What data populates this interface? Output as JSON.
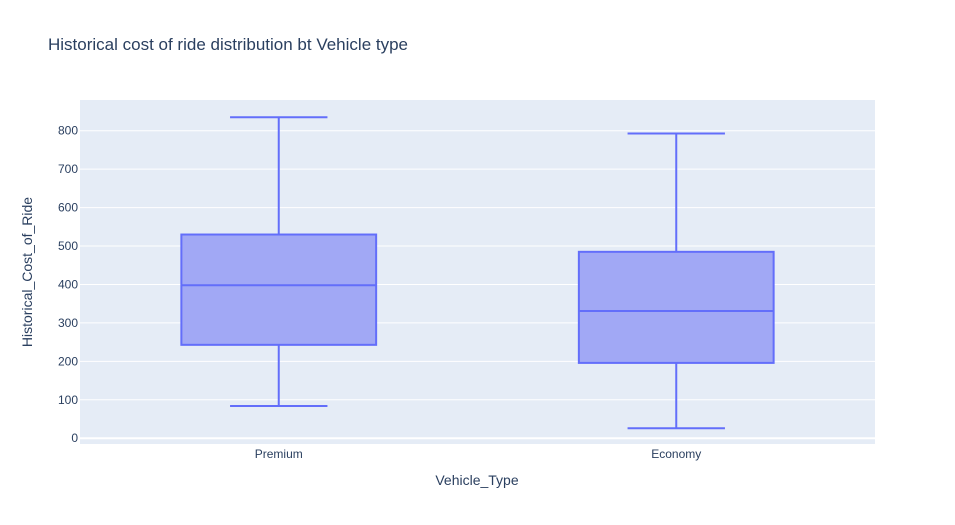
{
  "chart_data": {
    "type": "box",
    "title": "Historical cost of ride distribution bt Vehicle type",
    "xlabel": "Vehicle_Type",
    "ylabel": "Historical_Cost_of_Ride",
    "ylim": [
      -15,
      880
    ],
    "yticks": [
      0,
      100,
      200,
      300,
      400,
      500,
      600,
      700,
      800
    ],
    "grid": true,
    "colors": {
      "fill": "#a1a8f5",
      "line": "#636efa",
      "plot_bg": "#e5ecf6",
      "grid": "#ffffff",
      "text": "#2a3f5f"
    },
    "boxes": [
      {
        "category": "Premium",
        "min": 84,
        "q1": 243,
        "median": 398,
        "q3": 530,
        "max": 835
      },
      {
        "category": "Economy",
        "min": 26,
        "q1": 196,
        "median": 331,
        "q3": 485,
        "max": 793
      }
    ]
  }
}
